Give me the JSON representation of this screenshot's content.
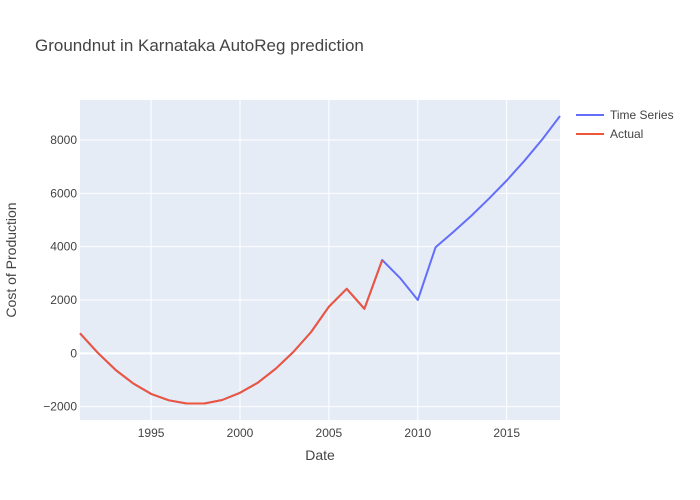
{
  "chart_data": {
    "type": "line",
    "title": "Groundnut in Karnataka AutoReg prediction",
    "xlabel": "Date",
    "ylabel": "Cost of Production",
    "xlim": [
      1991,
      2018
    ],
    "ylim": [
      -2500,
      9500
    ],
    "x_ticks": [
      1995,
      2000,
      2005,
      2010,
      2015
    ],
    "y_ticks": [
      -2000,
      0,
      2000,
      4000,
      6000,
      8000
    ],
    "y_tick_labels": [
      "−2000",
      "0",
      "2000",
      "4000",
      "6000",
      "8000"
    ],
    "grid": true,
    "legend_position": "top-right",
    "series": [
      {
        "name": "Time Series",
        "color": "#636efa",
        "x": [
          1991,
          1992,
          1993,
          1994,
          1995,
          1996,
          1997,
          1998,
          1999,
          2000,
          2001,
          2002,
          2003,
          2004,
          2005,
          2006,
          2007,
          2008,
          2009,
          2010,
          2011,
          2012,
          2013,
          2014,
          2015,
          2016,
          2017,
          2018
        ],
        "y": [
          750,
          20,
          -620,
          -1130,
          -1520,
          -1760,
          -1880,
          -1880,
          -1750,
          -1480,
          -1100,
          -580,
          50,
          800,
          1750,
          2420,
          1670,
          3500,
          2830,
          2000,
          3980,
          4550,
          5150,
          5800,
          6480,
          7220,
          8020,
          8900
        ]
      },
      {
        "name": "Actual",
        "color": "#ef553b",
        "x": [
          1991,
          1992,
          1993,
          1994,
          1995,
          1996,
          1997,
          1998,
          1999,
          2000,
          2001,
          2002,
          2003,
          2004,
          2005,
          2006,
          2007,
          2008
        ],
        "y": [
          750,
          20,
          -620,
          -1130,
          -1520,
          -1760,
          -1880,
          -1880,
          -1750,
          -1480,
          -1100,
          -580,
          50,
          800,
          1750,
          2420,
          1670,
          3500
        ]
      }
    ]
  }
}
